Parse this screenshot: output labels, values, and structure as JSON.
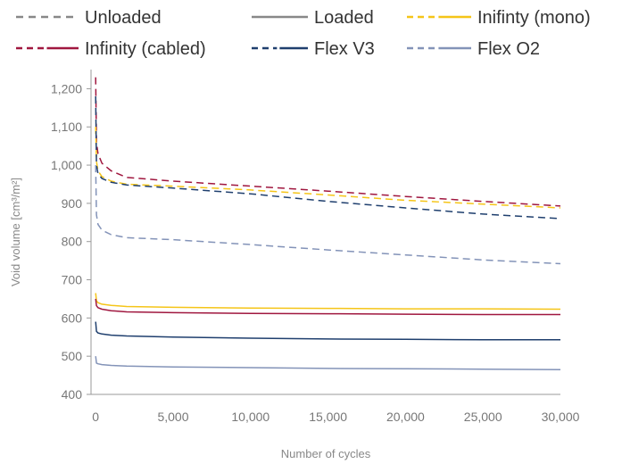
{
  "chart_data": {
    "type": "line",
    "xlabel": "Number of cycles",
    "ylabel": "Void volume [cm³/m²]",
    "xlim": [
      -300,
      30000
    ],
    "ylim": [
      400,
      1250
    ],
    "x_ticks": [
      0,
      5000,
      10000,
      15000,
      20000,
      25000,
      30000
    ],
    "x_tick_labels": [
      "0",
      "5,000",
      "10,000",
      "15,000",
      "20,000",
      "25,000",
      "30,000"
    ],
    "y_ticks": [
      400,
      500,
      600,
      700,
      800,
      900,
      1000,
      1100,
      1200
    ],
    "y_tick_labels": [
      "400",
      "500",
      "600",
      "700",
      "800",
      "900",
      "1,000",
      "1,100",
      "1,200"
    ],
    "grid": false,
    "legend_position": "top",
    "legend": [
      {
        "label": "Unloaded",
        "color": "#888888",
        "style": "dashed"
      },
      {
        "label": "Loaded",
        "color": "#888888",
        "style": "solid"
      },
      {
        "label": "Inifinty (mono)",
        "color": "#f5c518",
        "style": "dash-solid"
      },
      {
        "label": "Infinity (cabled)",
        "color": "#a0173f",
        "style": "dash-solid"
      },
      {
        "label": "Flex V3",
        "color": "#1f3f6e",
        "style": "dash-solid"
      },
      {
        "label": "Flex O2",
        "color": "#8393b8",
        "style": "dash-solid"
      }
    ],
    "series": [
      {
        "name": "Infinity (cabled)",
        "condition": "Unloaded",
        "color": "#a0173f",
        "style": "dashed",
        "x": [
          0,
          50,
          150,
          400,
          1000,
          2000,
          5000,
          10000,
          15000,
          20000,
          25000,
          30000
        ],
        "y": [
          1230,
          1060,
          1030,
          1005,
          985,
          968,
          958,
          945,
          932,
          918,
          905,
          893
        ]
      },
      {
        "name": "Inifinty (mono)",
        "condition": "Unloaded",
        "color": "#f5c518",
        "style": "dashed",
        "x": [
          0,
          50,
          150,
          400,
          1000,
          2000,
          5000,
          10000,
          15000,
          20000,
          25000,
          30000
        ],
        "y": [
          1100,
          1010,
          985,
          970,
          958,
          950,
          945,
          935,
          922,
          908,
          898,
          888
        ]
      },
      {
        "name": "Flex V3",
        "condition": "Unloaded",
        "color": "#1f3f6e",
        "style": "dashed",
        "x": [
          0,
          50,
          150,
          400,
          1000,
          2000,
          5000,
          10000,
          15000,
          20000,
          25000,
          30000
        ],
        "y": [
          1180,
          1000,
          978,
          965,
          955,
          948,
          940,
          925,
          905,
          888,
          872,
          860
        ]
      },
      {
        "name": "Flex O2",
        "condition": "Unloaded",
        "color": "#8393b8",
        "style": "dashed",
        "x": [
          0,
          50,
          150,
          400,
          1000,
          2000,
          5000,
          10000,
          15000,
          20000,
          25000,
          30000
        ],
        "y": [
          1000,
          870,
          845,
          830,
          818,
          810,
          805,
          792,
          778,
          765,
          752,
          742
        ]
      },
      {
        "name": "Inifinty (mono)",
        "condition": "Loaded",
        "color": "#f5c518",
        "style": "solid",
        "x": [
          0,
          50,
          150,
          400,
          1000,
          2000,
          5000,
          10000,
          15000,
          20000,
          25000,
          30000
        ],
        "y": [
          665,
          645,
          640,
          636,
          633,
          630,
          628,
          626,
          625,
          624,
          624,
          623
        ]
      },
      {
        "name": "Infinity (cabled)",
        "condition": "Loaded",
        "color": "#a0173f",
        "style": "solid",
        "x": [
          0,
          50,
          150,
          400,
          1000,
          2000,
          5000,
          10000,
          15000,
          20000,
          25000,
          30000
        ],
        "y": [
          650,
          632,
          627,
          623,
          619,
          616,
          614,
          612,
          611,
          610,
          609,
          609
        ]
      },
      {
        "name": "Flex V3",
        "condition": "Loaded",
        "color": "#1f3f6e",
        "style": "solid",
        "x": [
          0,
          50,
          150,
          400,
          1000,
          2000,
          5000,
          10000,
          15000,
          20000,
          25000,
          30000
        ],
        "y": [
          590,
          565,
          561,
          558,
          555,
          553,
          550,
          547,
          545,
          544,
          543,
          543
        ]
      },
      {
        "name": "Flex O2",
        "condition": "Loaded",
        "color": "#8393b8",
        "style": "solid",
        "x": [
          0,
          50,
          150,
          400,
          1000,
          2000,
          5000,
          10000,
          15000,
          20000,
          25000,
          30000
        ],
        "y": [
          500,
          482,
          480,
          478,
          476,
          474,
          472,
          470,
          468,
          467,
          466,
          465
        ]
      }
    ]
  }
}
